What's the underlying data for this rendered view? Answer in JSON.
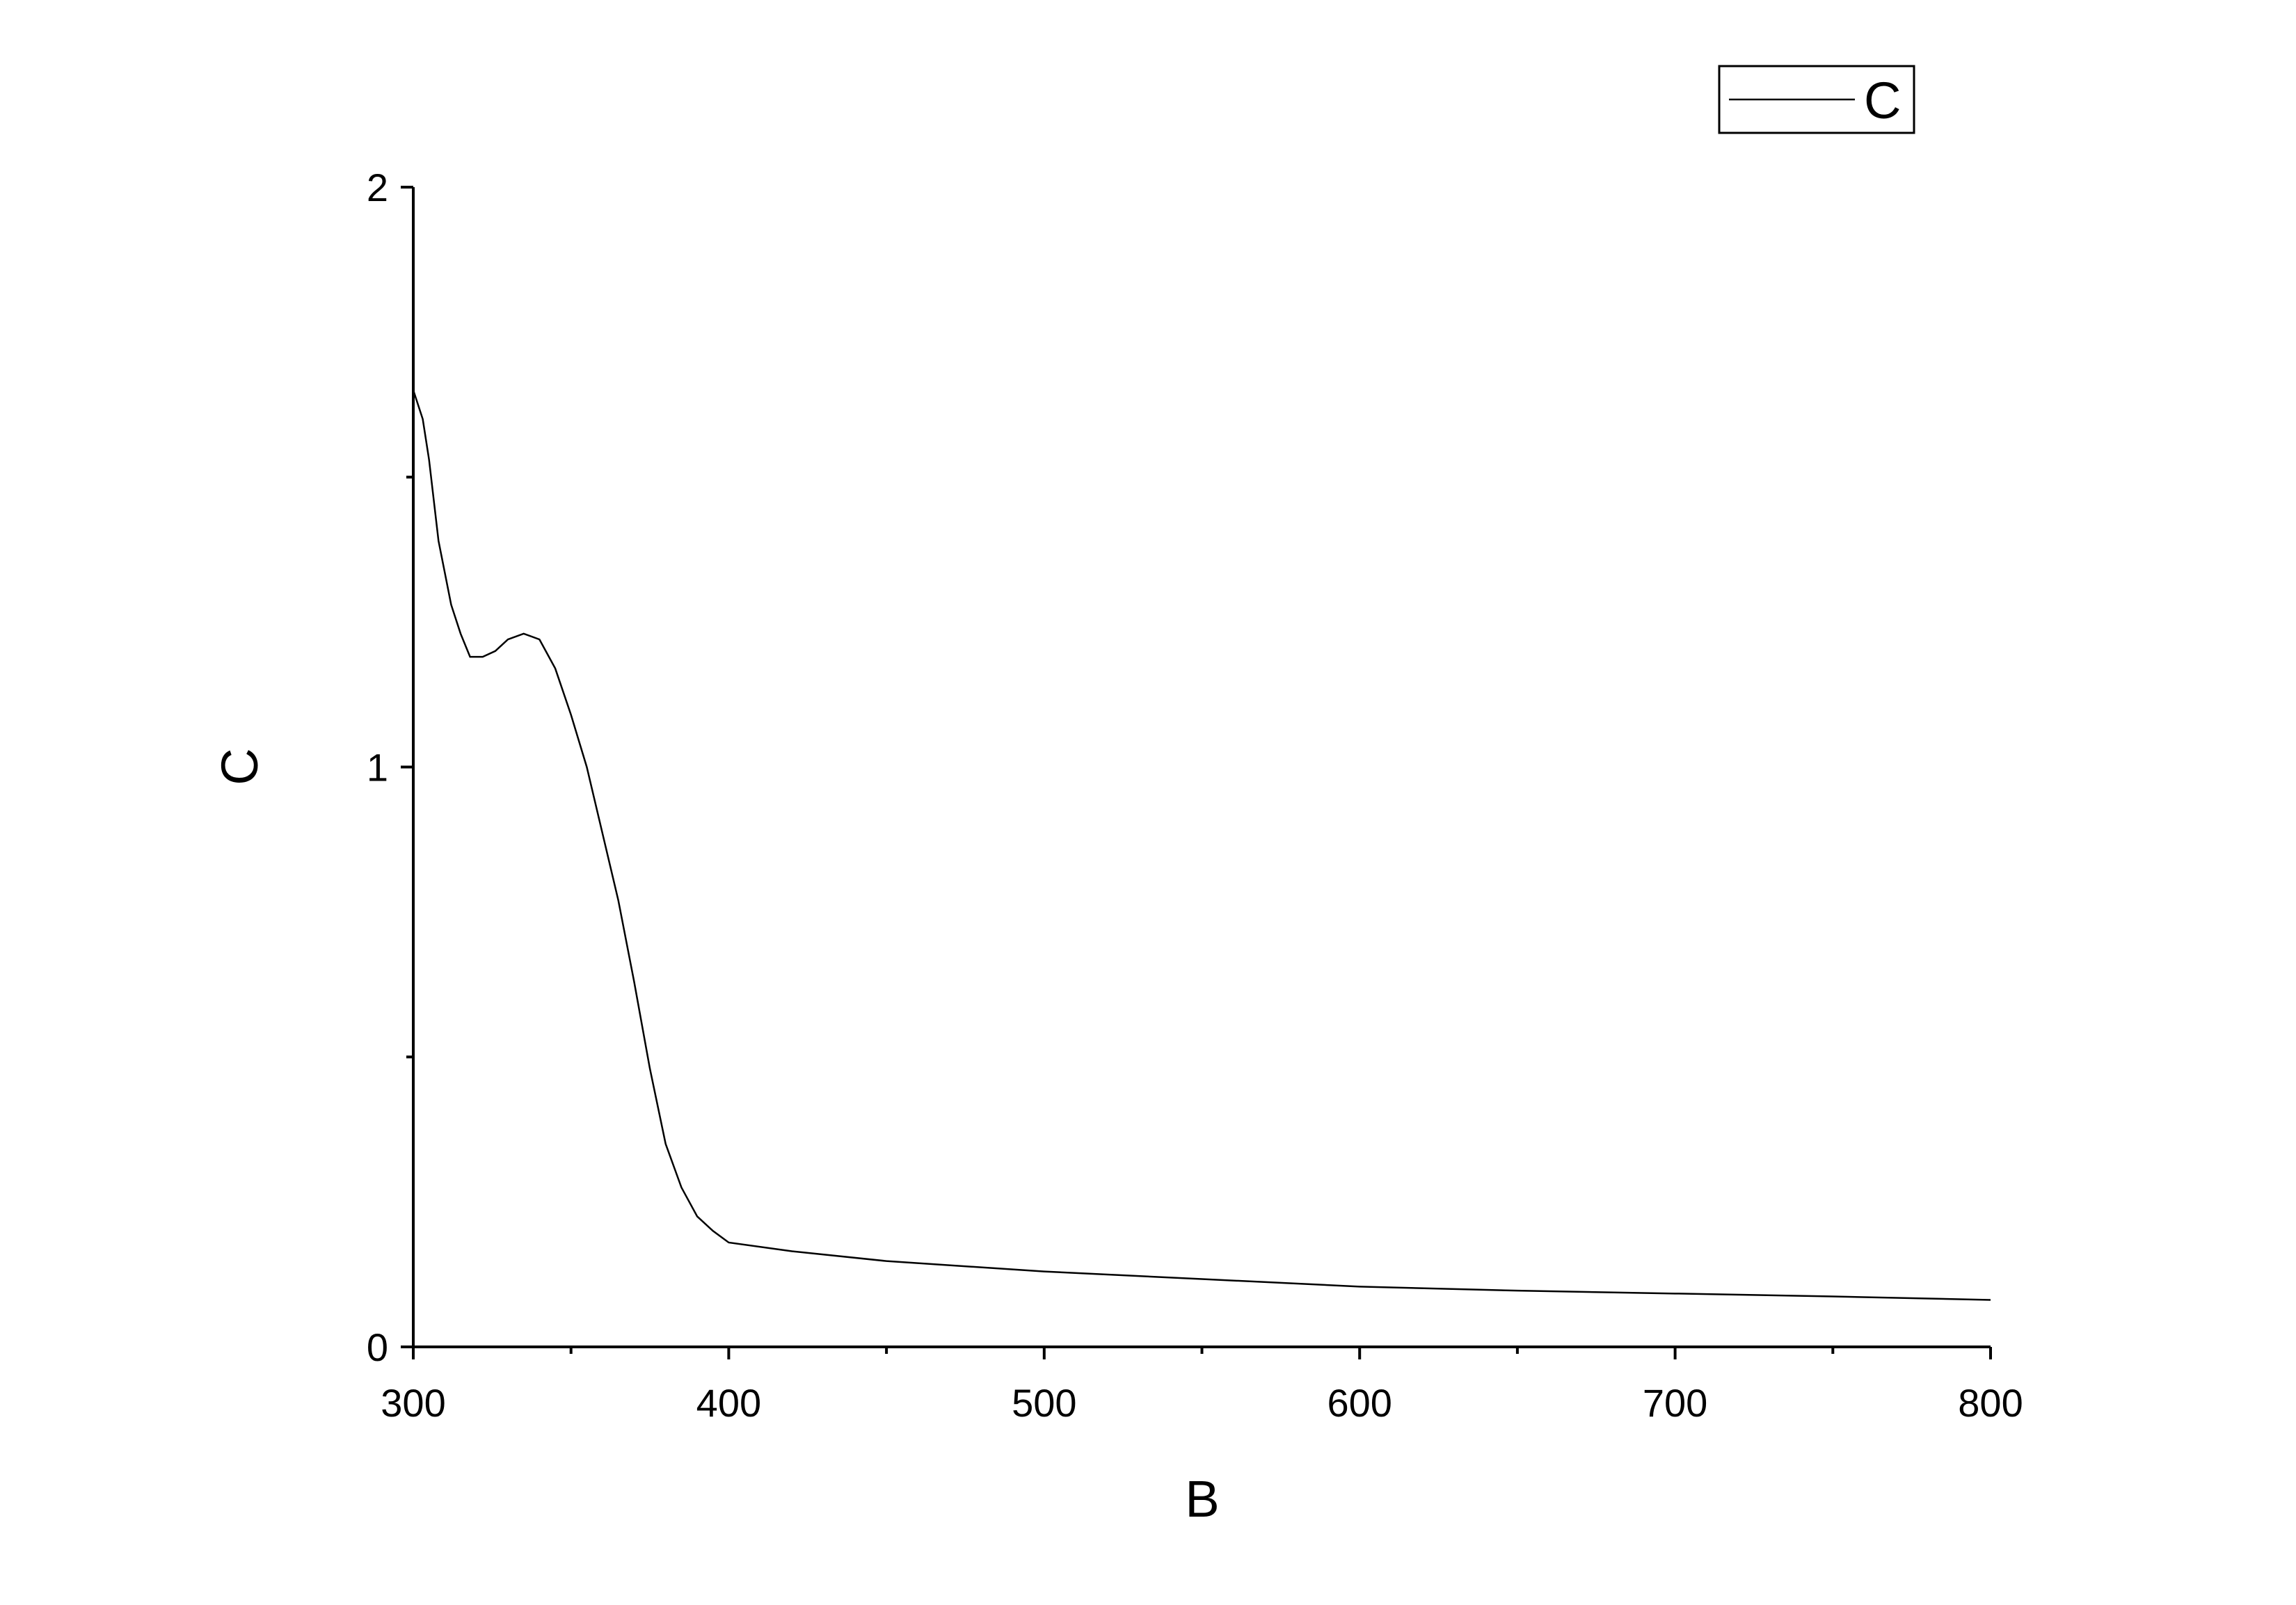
{
  "chart_data": {
    "type": "line",
    "x_label": "B",
    "y_label": "C",
    "x": [
      300,
      303,
      305,
      308,
      312,
      315,
      318,
      322,
      326,
      330,
      335,
      340,
      345,
      350,
      355,
      360,
      365,
      370,
      375,
      380,
      385,
      390,
      395,
      400,
      420,
      450,
      500,
      550,
      600,
      650,
      700,
      750,
      800
    ],
    "series": [
      {
        "name": "C",
        "color": "#000000",
        "values": [
          1.65,
          1.6,
          1.53,
          1.39,
          1.28,
          1.23,
          1.19,
          1.19,
          1.2,
          1.22,
          1.23,
          1.22,
          1.17,
          1.09,
          1.0,
          0.885,
          0.77,
          0.63,
          0.48,
          0.35,
          0.275,
          0.225,
          0.2,
          0.18,
          0.165,
          0.148,
          0.13,
          0.117,
          0.104,
          0.097,
          0.092,
          0.087,
          0.081
        ]
      }
    ],
    "xlim": [
      300,
      800
    ],
    "xticks": [
      300,
      400,
      500,
      600,
      700,
      800
    ],
    "xminorticks": [
      350,
      450,
      550,
      650,
      750
    ],
    "ylim": [
      0,
      2
    ],
    "yticks": [
      0,
      1,
      2
    ],
    "yminorticks": [
      0.5,
      1.5
    ],
    "legend": "top-right",
    "grid": false
  }
}
